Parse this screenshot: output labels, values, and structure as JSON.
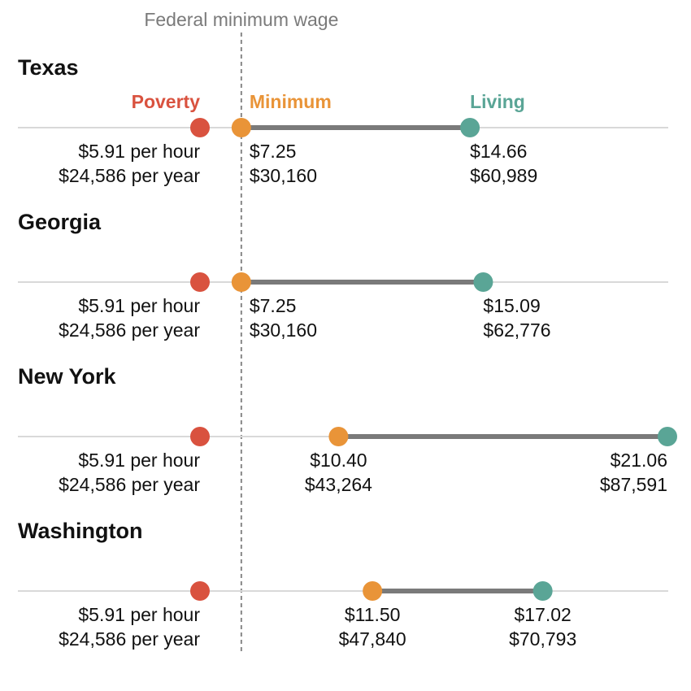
{
  "colors": {
    "poverty": "#d9523f",
    "minimum": "#e99438",
    "living": "#5aa596"
  },
  "reference_line": {
    "label": "Federal minimum wage",
    "value": 7.25
  },
  "legend": {
    "poverty": "Poverty",
    "minimum": "Minimum",
    "living": "Living"
  },
  "chart_data": {
    "type": "dumbbell",
    "x_unit": "dollars per hour",
    "xlim": [
      5.91,
      21.06
    ],
    "series": [
      {
        "key": "poverty",
        "name": "Poverty"
      },
      {
        "key": "minimum",
        "name": "Minimum"
      },
      {
        "key": "living",
        "name": "Living"
      }
    ],
    "rows": [
      {
        "state": "Texas",
        "poverty": {
          "hourly": 5.91,
          "hourly_label": "$5.91 per hour",
          "annual_label": "$24,586 per year"
        },
        "minimum": {
          "hourly": 7.25,
          "hourly_label": "$7.25",
          "annual_label": "$30,160"
        },
        "living": {
          "hourly": 14.66,
          "hourly_label": "$14.66",
          "annual_label": "$60,989"
        }
      },
      {
        "state": "Georgia",
        "poverty": {
          "hourly": 5.91,
          "hourly_label": "$5.91 per hour",
          "annual_label": "$24,586 per year"
        },
        "minimum": {
          "hourly": 7.25,
          "hourly_label": "$7.25",
          "annual_label": "$30,160"
        },
        "living": {
          "hourly": 15.09,
          "hourly_label": "$15.09",
          "annual_label": "$62,776"
        }
      },
      {
        "state": "New York",
        "poverty": {
          "hourly": 5.91,
          "hourly_label": "$5.91 per hour",
          "annual_label": "$24,586 per year"
        },
        "minimum": {
          "hourly": 10.4,
          "hourly_label": "$10.40",
          "annual_label": "$43,264"
        },
        "living": {
          "hourly": 21.06,
          "hourly_label": "$21.06",
          "annual_label": "$87,591"
        }
      },
      {
        "state": "Washington",
        "poverty": {
          "hourly": 5.91,
          "hourly_label": "$5.91 per hour",
          "annual_label": "$24,586 per year"
        },
        "minimum": {
          "hourly": 11.5,
          "hourly_label": "$11.50",
          "annual_label": "$47,840"
        },
        "living": {
          "hourly": 17.02,
          "hourly_label": "$17.02",
          "annual_label": "$70,793"
        }
      }
    ]
  }
}
